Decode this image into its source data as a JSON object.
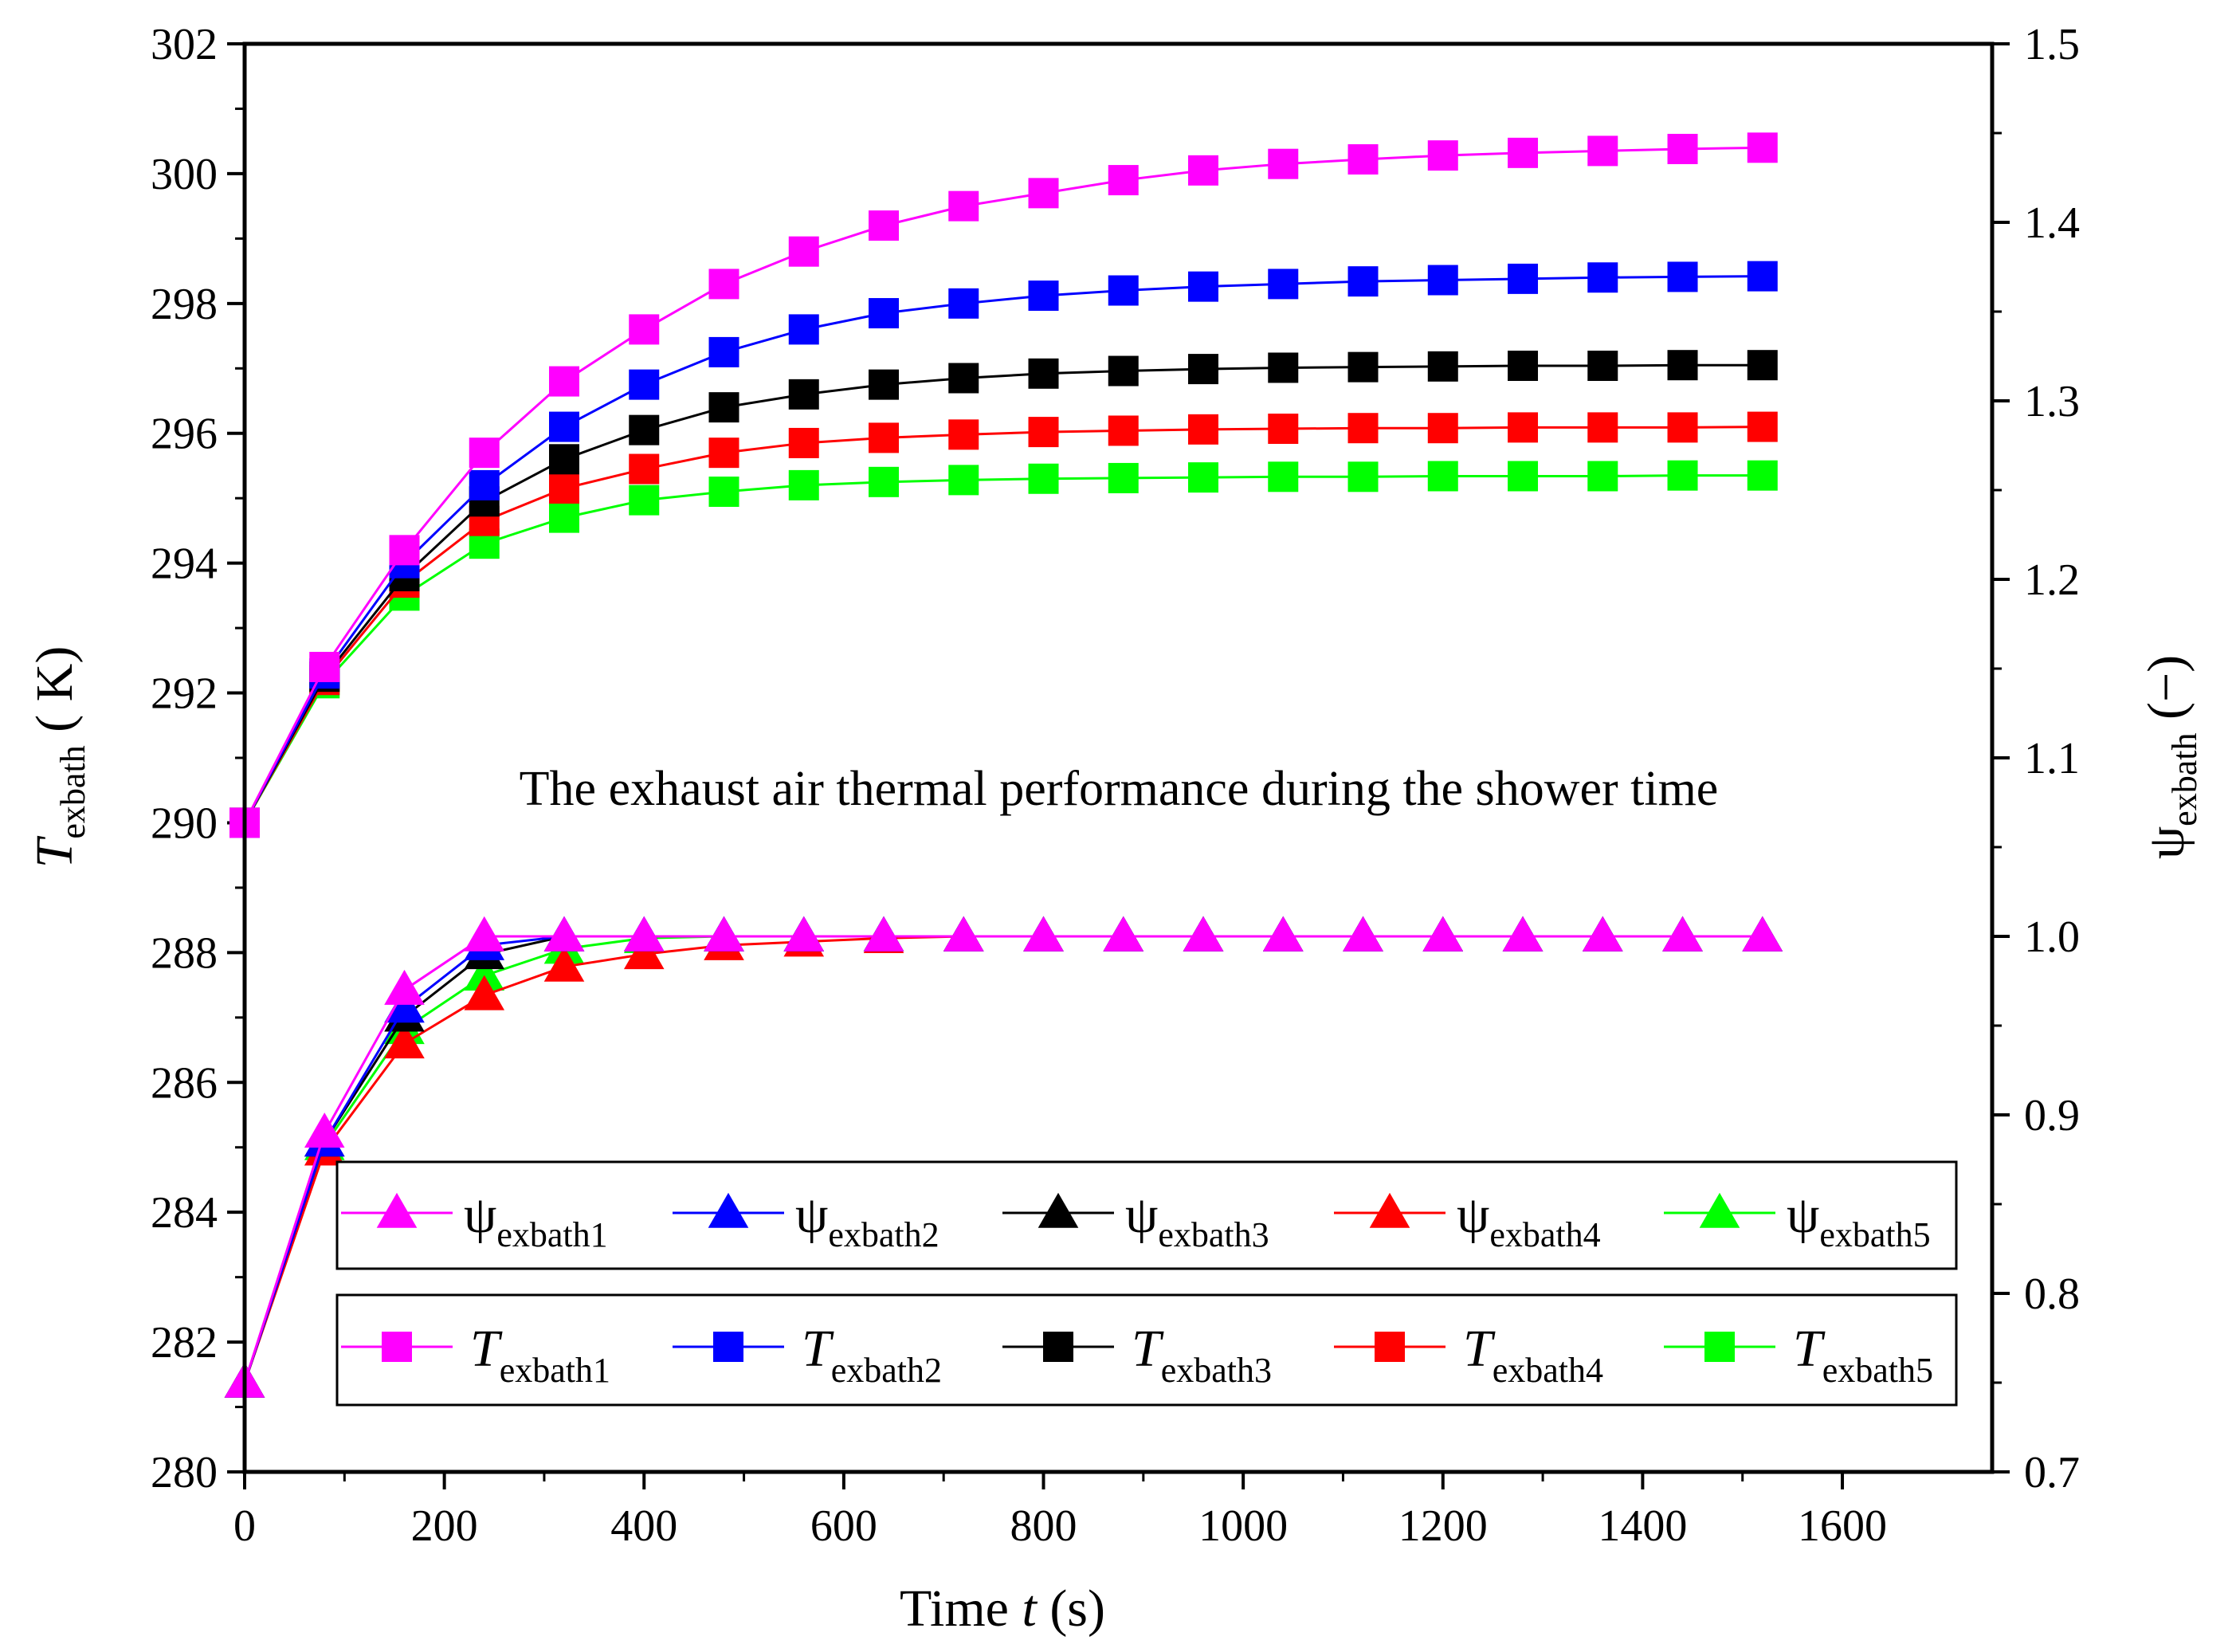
{
  "chart_data": {
    "type": "line",
    "annotation": "The exhaust air thermal performance during the shower time",
    "xlabel": {
      "main": "Time ",
      "var": "t",
      "unit": "(s)"
    },
    "ylabel_left": {
      "var": "T",
      "sub": "exbath",
      "unit": "( K)"
    },
    "ylabel_right": {
      "var": "ψ",
      "sub": "exbath",
      "unit": "(−)"
    },
    "xlim": [
      0,
      1750
    ],
    "ylim_left": [
      280,
      302
    ],
    "ylim_right": [
      0.7,
      1.5
    ],
    "x_ticks": [
      "0",
      "200",
      "400",
      "600",
      "800",
      "1000",
      "1200",
      "1400",
      "1600"
    ],
    "y_left_ticks": [
      "280",
      "282",
      "284",
      "286",
      "288",
      "290",
      "292",
      "294",
      "296",
      "298",
      "300",
      "302"
    ],
    "y_right_ticks": [
      "0.7",
      "0.8",
      "0.9",
      "1.0",
      "1.1",
      "1.2",
      "1.3",
      "1.4",
      "1.5"
    ],
    "x": [
      0,
      80,
      160,
      240,
      320,
      400,
      480,
      560,
      640,
      720,
      800,
      880,
      960,
      1040,
      1120,
      1200,
      1280,
      1360,
      1440,
      1520
    ],
    "colors": {
      "s1": "#ff00ff",
      "s2": "#0000ff",
      "s3": "#000000",
      "s4": "#ff0000",
      "s5": "#00ff00"
    },
    "temperature_series": [
      {
        "name": "T",
        "sub": "exbath1",
        "color": "#ff00ff",
        "values": [
          290.0,
          292.4,
          294.2,
          295.7,
          296.8,
          297.6,
          298.3,
          298.8,
          299.2,
          299.5,
          299.7,
          299.9,
          300.05,
          300.15,
          300.22,
          300.28,
          300.32,
          300.35,
          300.38,
          300.4
        ]
      },
      {
        "name": "T",
        "sub": "exbath2",
        "color": "#0000ff",
        "values": [
          290.0,
          292.3,
          294.0,
          295.2,
          296.1,
          296.75,
          297.25,
          297.6,
          297.85,
          298.0,
          298.12,
          298.2,
          298.26,
          298.3,
          298.34,
          298.36,
          298.38,
          298.4,
          298.41,
          298.42
        ]
      },
      {
        "name": "T",
        "sub": "exbath3",
        "color": "#000000",
        "values": [
          290.0,
          292.25,
          293.8,
          294.95,
          295.6,
          296.05,
          296.4,
          296.6,
          296.75,
          296.85,
          296.92,
          296.96,
          296.99,
          297.01,
          297.02,
          297.03,
          297.04,
          297.04,
          297.05,
          297.05
        ]
      },
      {
        "name": "T",
        "sub": "exbath4",
        "color": "#ff0000",
        "values": [
          290.0,
          292.2,
          293.7,
          294.65,
          295.15,
          295.45,
          295.7,
          295.85,
          295.93,
          295.98,
          296.02,
          296.04,
          296.06,
          296.07,
          296.08,
          296.08,
          296.09,
          296.09,
          296.09,
          296.1
        ]
      },
      {
        "name": "T",
        "sub": "exbath5",
        "color": "#00ff00",
        "values": [
          290.0,
          292.15,
          293.5,
          294.3,
          294.7,
          294.97,
          295.1,
          295.2,
          295.25,
          295.28,
          295.3,
          295.31,
          295.32,
          295.33,
          295.33,
          295.34,
          295.34,
          295.34,
          295.35,
          295.35
        ]
      }
    ],
    "psi_series": [
      {
        "name": "ψ",
        "sub": "exbath1",
        "color": "#ff00ff",
        "values": [
          0.75,
          0.89,
          0.97,
          1.0,
          1.0,
          1.0,
          1.0,
          1.0,
          1.0,
          1.0,
          1.0,
          1.0,
          1.0,
          1.0,
          1.0,
          1.0,
          1.0,
          1.0,
          1.0,
          1.0
        ]
      },
      {
        "name": "ψ",
        "sub": "exbath2",
        "color": "#0000ff",
        "values": [
          0.75,
          0.885,
          0.96,
          0.995,
          1.0,
          1.0,
          1.0,
          1.0,
          1.0,
          1.0,
          1.0,
          1.0,
          1.0,
          1.0,
          1.0,
          1.0,
          1.0,
          1.0,
          1.0,
          1.0
        ]
      },
      {
        "name": "ψ",
        "sub": "exbath3",
        "color": "#000000",
        "values": [
          0.75,
          0.885,
          0.955,
          0.99,
          1.0,
          1.0,
          1.0,
          1.0,
          1.0,
          1.0,
          1.0,
          1.0,
          1.0,
          1.0,
          1.0,
          1.0,
          1.0,
          1.0,
          1.0,
          1.0
        ]
      },
      {
        "name": "ψ",
        "sub": "exbath4",
        "color": "#ff0000",
        "values": [
          0.75,
          0.88,
          0.94,
          0.967,
          0.983,
          0.99,
          0.995,
          0.997,
          0.999,
          1.0,
          1.0,
          1.0,
          1.0,
          1.0,
          1.0,
          1.0,
          1.0,
          1.0,
          1.0,
          1.0
        ]
      },
      {
        "name": "ψ",
        "sub": "exbath5",
        "color": "#00ff00",
        "values": [
          0.75,
          0.883,
          0.948,
          0.978,
          0.993,
          0.999,
          1.0,
          1.0,
          1.0,
          1.0,
          1.0,
          1.0,
          1.0,
          1.0,
          1.0,
          1.0,
          1.0,
          1.0,
          1.0,
          1.0
        ]
      }
    ],
    "legend_psi_placement": "bottom",
    "legend_t_placement": "bottom"
  }
}
